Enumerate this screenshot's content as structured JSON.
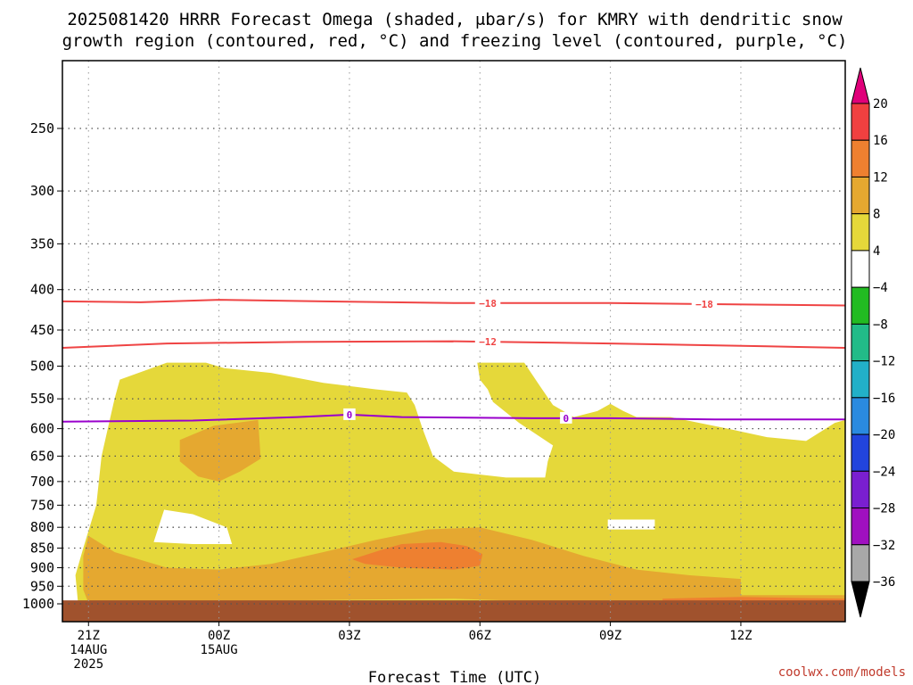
{
  "chart_data": {
    "type": "heatmap",
    "title_line1": "2025081420 HRRR Forecast Omega (shaded, μbar/s) for KMRY with dendritic snow",
    "title_line2": "growth region (contoured, red, °C) and freezing level (contoured, purple, °C)",
    "xlabel": "Forecast Time (UTC)",
    "ylabel": "",
    "credit": "coolwx.com/models",
    "x_range_hours": [
      -1,
      29
    ],
    "y_levels": [
      250,
      300,
      350,
      400,
      450,
      500,
      550,
      600,
      650,
      700,
      750,
      800,
      850,
      900,
      950,
      1000
    ],
    "y_tick_labels": [
      "250",
      "300",
      "350",
      "400",
      "450",
      "500",
      "550",
      "600",
      "650",
      "700",
      "750",
      "800",
      "850",
      "900",
      "950",
      "1000"
    ],
    "x_ticks": [
      {
        "hour": 0,
        "lines": [
          "21Z",
          "14AUG",
          "2025"
        ]
      },
      {
        "hour": 5,
        "lines": [
          "00Z",
          "15AUG"
        ]
      },
      {
        "hour": 10,
        "lines": [
          "03Z"
        ]
      },
      {
        "hour": 15,
        "lines": [
          "06Z"
        ]
      },
      {
        "hour": 20,
        "lines": [
          "09Z"
        ]
      },
      {
        "hour": 25,
        "lines": [
          "12Z"
        ]
      }
    ],
    "colorbar": {
      "bins": [
        {
          "color": "#e0007a",
          "kind": "arrow-up"
        },
        {
          "color": "#f04040",
          "label": "20"
        },
        {
          "color": "#ee8030",
          "label": "16"
        },
        {
          "color": "#e5a830",
          "label": "12"
        },
        {
          "color": "#e5d83a",
          "label": "8"
        },
        {
          "color": "#ffffff",
          "label": "4"
        },
        {
          "color": "#22bb22",
          "label": "−4"
        },
        {
          "color": "#22bb88",
          "label": "−8"
        },
        {
          "color": "#22b0c8",
          "label": "−12"
        },
        {
          "color": "#2a8ae0",
          "label": "−16"
        },
        {
          "color": "#2244dd",
          "label": "−20"
        },
        {
          "color": "#7a1fd0",
          "label": "−24"
        },
        {
          "color": "#a010c0",
          "label": "−28"
        },
        {
          "color": "#a8a8a8",
          "label": "−32"
        },
        {
          "color": "#000000",
          "kind": "arrow-down",
          "label": "−36"
        }
      ]
    },
    "colors": {
      "omega_4_8": "#e5d83a",
      "omega_8_12": "#e5a830",
      "omega_12_16": "#ee8030",
      "terrain": "#a0522d",
      "dgz_contour": "#ef4444",
      "freezing_contour": "#9900cc"
    },
    "contours": {
      "dgz_minus18": {
        "label": "−18",
        "color": "#ef4444",
        "points": [
          [
            -1,
            414
          ],
          [
            2,
            415
          ],
          [
            5,
            412
          ],
          [
            9,
            414
          ],
          [
            14,
            416
          ],
          [
            20,
            416
          ],
          [
            26,
            418
          ],
          [
            29,
            419
          ]
        ],
        "label_hours": [
          15.3,
          23.6
        ]
      },
      "dgz_minus12": {
        "label": "−12",
        "color": "#ef4444",
        "points": [
          [
            -1,
            474
          ],
          [
            3,
            468
          ],
          [
            8,
            466
          ],
          [
            14,
            465
          ],
          [
            20,
            468
          ],
          [
            26,
            472
          ],
          [
            29,
            474
          ]
        ],
        "label_hours": [
          15.3
        ]
      },
      "freezing_0": {
        "label": "0",
        "color": "#9900cc",
        "points": [
          [
            -1,
            588
          ],
          [
            4,
            586
          ],
          [
            8,
            580
          ],
          [
            10,
            576
          ],
          [
            12,
            580
          ],
          [
            17,
            582
          ],
          [
            20,
            582
          ],
          [
            24,
            584
          ],
          [
            29,
            584
          ]
        ],
        "label_hours": [
          10,
          18.3
        ]
      }
    },
    "omega_regions": {
      "yellow_main": [
        [
          -0.4,
          1000
        ],
        [
          -0.5,
          920
        ],
        [
          -0.2,
          850
        ],
        [
          0.3,
          750
        ],
        [
          0.5,
          650
        ],
        [
          1,
          550
        ],
        [
          1.2,
          520
        ],
        [
          3,
          495
        ],
        [
          4.5,
          495
        ],
        [
          5.2,
          503
        ],
        [
          7,
          510
        ],
        [
          9,
          525
        ],
        [
          11,
          535
        ],
        [
          12.2,
          540
        ],
        [
          12.5,
          560
        ],
        [
          12.8,
          600
        ],
        [
          13.2,
          650
        ],
        [
          14,
          680
        ],
        [
          16,
          692
        ],
        [
          17.5,
          692
        ],
        [
          17.6,
          660
        ],
        [
          17.8,
          630
        ],
        [
          16.5,
          590
        ],
        [
          15.5,
          555
        ],
        [
          15.3,
          535
        ],
        [
          15,
          520
        ],
        [
          14.9,
          495
        ],
        [
          16.7,
          495
        ],
        [
          17.3,
          530
        ],
        [
          17.8,
          560
        ],
        [
          18.6,
          580
        ],
        [
          19.5,
          570
        ],
        [
          20,
          558
        ],
        [
          20.5,
          570
        ],
        [
          21,
          580
        ],
        [
          22.3,
          580
        ],
        [
          24.5,
          600
        ],
        [
          26,
          615
        ],
        [
          27.5,
          622
        ],
        [
          28.6,
          590
        ],
        [
          29,
          585
        ],
        [
          29,
          1000
        ]
      ],
      "white_holes": [
        [
          [
            2.5,
            835
          ],
          [
            2.9,
            760
          ],
          [
            4.0,
            770
          ],
          [
            5.3,
            800
          ],
          [
            5.5,
            840
          ],
          [
            4.0,
            840
          ]
        ],
        [
          [
            19.9,
            805
          ],
          [
            19.9,
            782
          ],
          [
            21.7,
            782
          ],
          [
            21.7,
            805
          ]
        ],
        [
          [
            9.3,
            965
          ],
          [
            11.5,
            955
          ],
          [
            13.5,
            962
          ],
          [
            11.5,
            970
          ]
        ],
        [
          [
            0.1,
            995
          ],
          [
            0.3,
            990
          ],
          [
            0.1,
            987
          ]
        ]
      ],
      "orange_light": [
        [
          [
            -0.2,
            960
          ],
          [
            -0.2,
            870
          ],
          [
            0,
            820
          ],
          [
            1,
            860
          ],
          [
            3,
            900
          ],
          [
            5,
            905
          ],
          [
            7,
            890
          ],
          [
            9,
            860
          ],
          [
            11,
            830
          ],
          [
            13,
            805
          ],
          [
            15,
            800
          ],
          [
            17,
            830
          ],
          [
            19,
            870
          ],
          [
            21,
            905
          ],
          [
            23,
            920
          ],
          [
            25,
            930
          ],
          [
            25,
            975
          ],
          [
            29,
            975
          ],
          [
            29,
            1000
          ],
          [
            25,
            1000
          ],
          [
            22,
            1000
          ],
          [
            18,
            995
          ],
          [
            14,
            985
          ],
          [
            10,
            988
          ],
          [
            8,
            990
          ],
          [
            6,
            992
          ],
          [
            4,
            992
          ],
          [
            2,
            995
          ],
          [
            1,
            998
          ],
          [
            0,
            998
          ]
        ],
        [
          [
            3.5,
            620
          ],
          [
            4.8,
            595
          ],
          [
            6.5,
            585
          ],
          [
            6.6,
            655
          ],
          [
            5.8,
            680
          ],
          [
            5,
            700
          ],
          [
            4.2,
            690
          ],
          [
            3.5,
            660
          ]
        ],
        [
          [
            24,
            990
          ],
          [
            27,
            985
          ],
          [
            29,
            985
          ],
          [
            29,
            1000
          ],
          [
            24,
            1000
          ]
        ]
      ],
      "orange_dark": [
        [
          [
            10.1,
            878
          ],
          [
            11.2,
            855
          ],
          [
            12,
            840
          ],
          [
            13.5,
            835
          ],
          [
            14.5,
            845
          ],
          [
            15.1,
            865
          ],
          [
            15,
            895
          ],
          [
            14,
            905
          ],
          [
            12,
            900
          ],
          [
            10.6,
            890
          ]
        ],
        [
          [
            22,
            985
          ],
          [
            25,
            980
          ],
          [
            27,
            983
          ],
          [
            29,
            985
          ],
          [
            29,
            995
          ],
          [
            27,
            995
          ],
          [
            25,
            993
          ],
          [
            22,
            992
          ]
        ]
      ]
    }
  }
}
